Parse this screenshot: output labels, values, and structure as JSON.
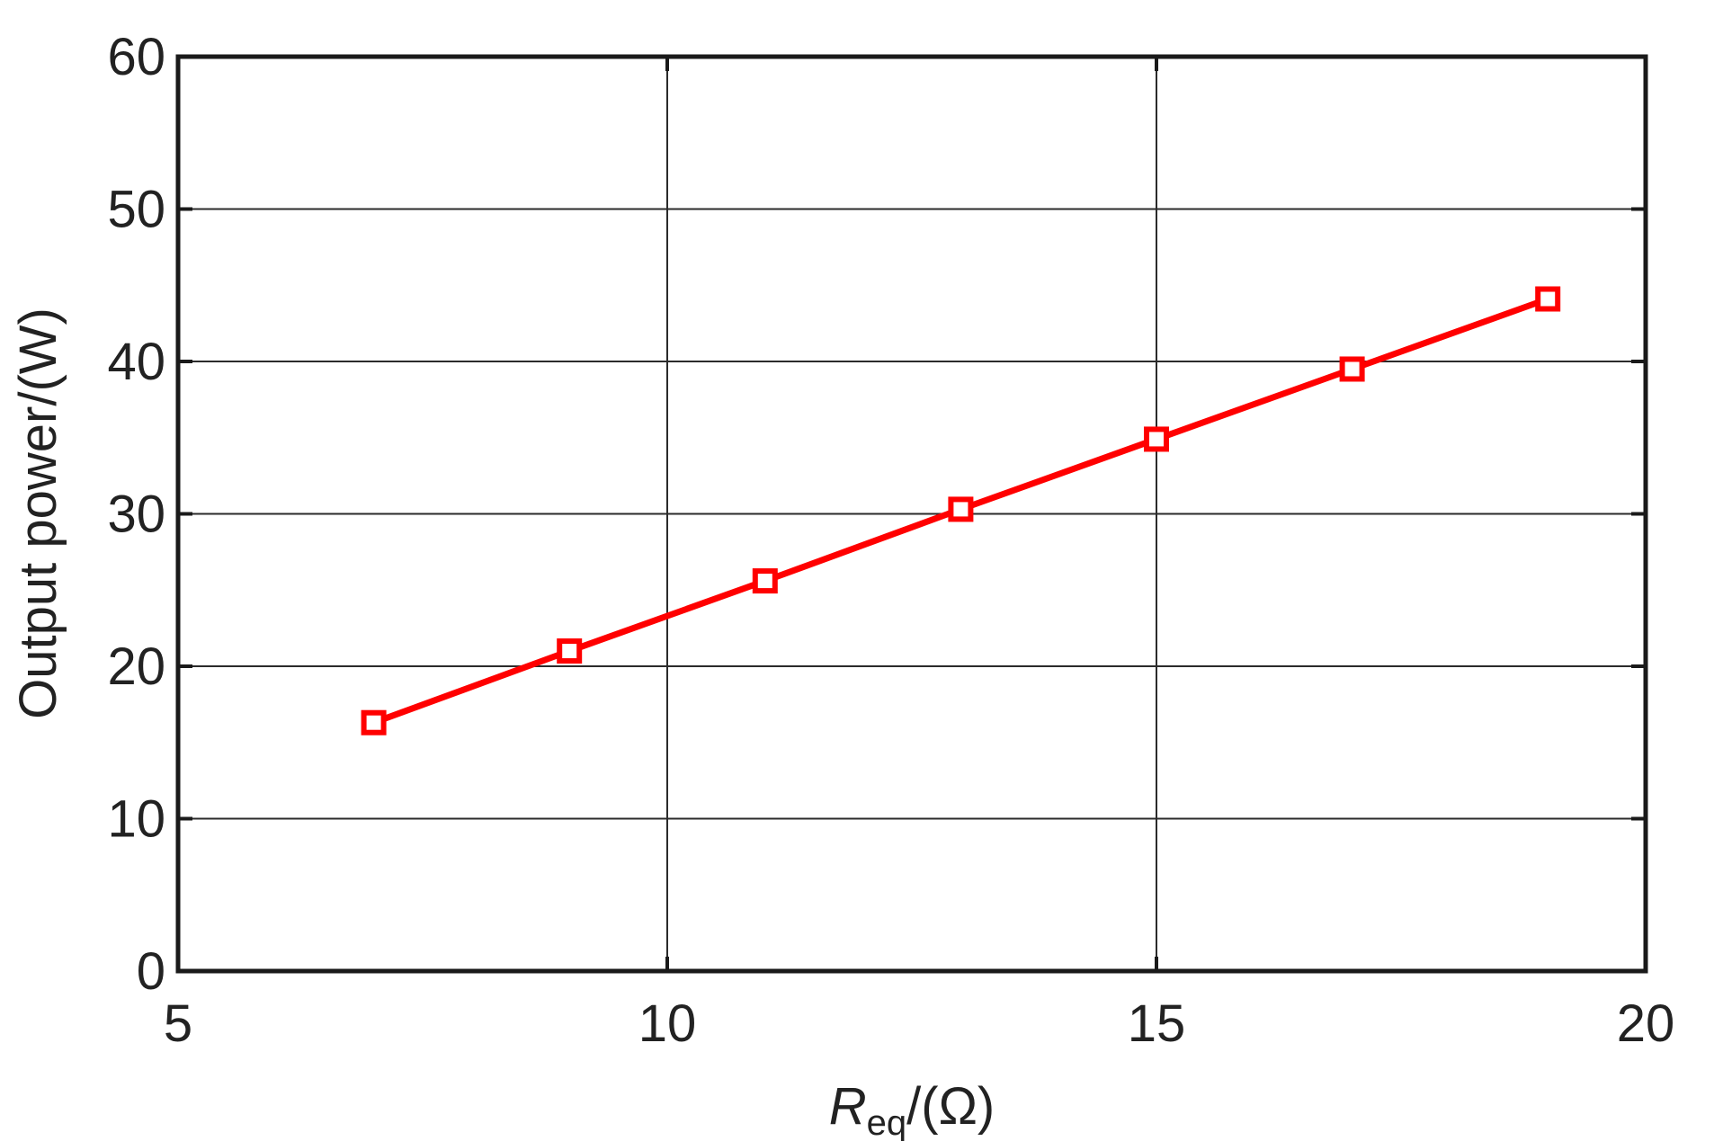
{
  "chart_data": {
    "type": "line",
    "title": "",
    "xlabel": {
      "main": "R",
      "subscript": "eq",
      "suffix": "/(Ω)"
    },
    "ylabel": "Output power/(W)",
    "xlim": [
      5,
      20
    ],
    "ylim": [
      0,
      60
    ],
    "xticks": [
      "5",
      "10",
      "15",
      "20"
    ],
    "yticks": [
      "0",
      "10",
      "20",
      "30",
      "40",
      "50",
      "60"
    ],
    "grid": true,
    "series": [
      {
        "color": "#ff0000",
        "marker": "square",
        "x": [
          7,
          9,
          11,
          13,
          15,
          17,
          19
        ],
        "y": [
          16.3,
          21.0,
          25.6,
          30.3,
          34.9,
          39.5,
          44.1
        ]
      }
    ]
  }
}
